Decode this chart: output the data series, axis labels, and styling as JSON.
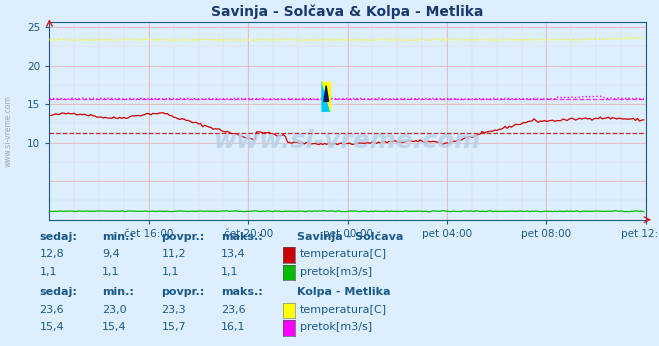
{
  "title": "Savinja - Solčava & Kolpa - Metlika",
  "bg_color": "#ddeeff",
  "plot_bg_color": "#ddeeff",
  "xlim": [
    0,
    288
  ],
  "ylim": [
    0,
    25.6
  ],
  "xtick_positions": [
    48,
    96,
    144,
    192,
    240,
    288
  ],
  "xtick_labels": [
    "čet 16:00",
    "čet 20:00",
    "pet 00:00",
    "pet 04:00",
    "pet 08:00",
    "pet 12:00"
  ],
  "ytick_positions": [
    10,
    15,
    20,
    25
  ],
  "ytick_labels": [
    "10",
    "15",
    "20",
    "25"
  ],
  "grid_color_v": "#e8b0b0",
  "grid_color_h": "#e8b0b0",
  "savinja_temp_color": "#cc0000",
  "savinja_pretok_color": "#00bb00",
  "kolpa_temp_color": "#ffff00",
  "kolpa_pretok_color": "#ff00ff",
  "savinja_temp_avg": 11.2,
  "kolpa_pretok_avg": 15.7,
  "title_color": "#1a3a6b",
  "text_color": "#1a5a8a",
  "watermark": "www.si-vreme.com",
  "left_label": "www.si-vreme.com",
  "table": {
    "savinja_header": "Savinja - Solčava",
    "kolpa_header": "Kolpa - Metlika",
    "col_headers": [
      "sedaj:",
      "min.:",
      "povpr.:",
      "maks.:"
    ],
    "savinja_temp": [
      "12,8",
      "9,4",
      "11,2",
      "13,4"
    ],
    "savinja_pretok": [
      "1,1",
      "1,1",
      "1,1",
      "1,1"
    ],
    "kolpa_temp": [
      "23,6",
      "23,0",
      "23,3",
      "23,6"
    ],
    "kolpa_pretok": [
      "15,4",
      "15,4",
      "15,7",
      "16,1"
    ],
    "label_temp": "temperatura[C]",
    "label_pretok": "pretok[m3/s]"
  }
}
